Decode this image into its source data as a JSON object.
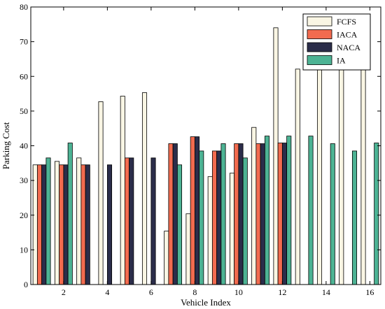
{
  "chart_data": {
    "type": "bar",
    "title": "",
    "xlabel": "Vehicle Index",
    "ylabel": "Parking Cost",
    "categories": [
      1,
      2,
      3,
      4,
      5,
      6,
      7,
      8,
      9,
      10,
      11,
      12,
      13,
      14,
      15,
      16
    ],
    "xticks": [
      "2",
      "4",
      "6",
      "8",
      "10",
      "12",
      "14",
      "16"
    ],
    "xtick_values": [
      2,
      4,
      6,
      8,
      10,
      12,
      14,
      16
    ],
    "ylim": [
      0,
      80
    ],
    "yticks": [
      "0",
      "10",
      "20",
      "30",
      "40",
      "50",
      "60",
      "70",
      "80"
    ],
    "ytick_values": [
      0,
      10,
      20,
      30,
      40,
      50,
      60,
      70,
      80
    ],
    "grid": false,
    "legend_position": "top-right",
    "series": [
      {
        "name": "FCFS",
        "color": "#faf6e4",
        "values": [
          34.5,
          35.5,
          36.5,
          52.7,
          54.3,
          55.3,
          15.4,
          20.4,
          31.1,
          32.1,
          45.3,
          74.0,
          62.1,
          62.1,
          62.1,
          62.1
        ]
      },
      {
        "name": "IACA",
        "color": "#f26b4f",
        "values": [
          34.5,
          34.5,
          34.5,
          0,
          36.5,
          0,
          40.6,
          42.6,
          38.5,
          40.6,
          40.6,
          40.8,
          0,
          0,
          0,
          0
        ]
      },
      {
        "name": "NACA",
        "color": "#2b2d4a",
        "values": [
          34.5,
          34.5,
          34.5,
          34.5,
          36.5,
          36.5,
          40.6,
          42.6,
          38.5,
          40.6,
          40.6,
          40.8,
          0,
          0,
          0,
          0
        ]
      },
      {
        "name": "IA",
        "color": "#4db394",
        "values": [
          36.5,
          40.8,
          0,
          0,
          0,
          0,
          34.5,
          38.5,
          40.6,
          36.5,
          42.8,
          42.8,
          42.8,
          40.6,
          38.5,
          40.8
        ]
      }
    ]
  }
}
